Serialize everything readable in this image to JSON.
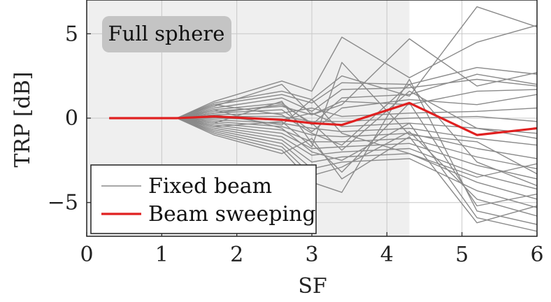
{
  "chart_data": {
    "type": "line",
    "xlabel": "SF",
    "ylabel": "TRP [dB]",
    "xlim": [
      0,
      6
    ],
    "ylim": [
      -7,
      7
    ],
    "x_ticks": [
      0,
      1,
      2,
      3,
      4,
      5,
      6
    ],
    "y_ticks": [
      -5,
      0,
      5
    ],
    "x_tick_labels": [
      "0",
      "1",
      "2",
      "3",
      "4",
      "5",
      "6"
    ],
    "y_tick_labels": [
      "−5",
      "0",
      "5"
    ],
    "grid": true,
    "shaded_region": {
      "x_from": 0,
      "x_to": 4.3
    },
    "annotation": "Full sphere",
    "legend": {
      "position": "bottom-left",
      "entries": [
        "Fixed beam",
        "Beam sweeping"
      ]
    },
    "colors": {
      "fixed": "#8a8a8a",
      "sweep": "#e02020",
      "shade": "#efefef",
      "grid": "#c8c8c8"
    },
    "x": [
      0.3,
      1.2,
      1.7,
      2.6,
      3.0,
      3.4,
      4.3,
      5.2,
      6.0
    ],
    "series": [
      {
        "name": "Beam sweeping",
        "values": [
          0,
          0,
          0.1,
          -0.1,
          -0.3,
          -0.4,
          0.9,
          -1.0,
          -0.6
        ]
      },
      {
        "values": [
          0,
          0,
          0.9,
          1.6,
          1.1,
          2.5,
          1.3,
          6.6,
          5.4
        ]
      },
      {
        "values": [
          0,
          0,
          1.0,
          2.2,
          1.6,
          4.8,
          2.4,
          4.5,
          5.5
        ]
      },
      {
        "values": [
          0,
          0,
          0.7,
          2.0,
          0.2,
          0.8,
          4.7,
          1.9,
          2.7
        ]
      },
      {
        "values": [
          0,
          0,
          0.8,
          1.4,
          0.9,
          2.1,
          2.0,
          3.0,
          2.6
        ]
      },
      {
        "values": [
          0,
          0,
          0.6,
          1.2,
          0.4,
          1.7,
          1.8,
          2.3,
          1.9
        ]
      },
      {
        "values": [
          0,
          0,
          0.5,
          0.9,
          -0.4,
          1.2,
          1.4,
          2.6,
          2.0
        ]
      },
      {
        "values": [
          0,
          0,
          0.4,
          0.7,
          0.2,
          1.0,
          0.8,
          1.6,
          1.7
        ]
      },
      {
        "values": [
          0,
          0,
          0.3,
          0.5,
          -0.8,
          0.6,
          1.1,
          0.8,
          1.4
        ]
      },
      {
        "values": [
          0,
          0,
          0.2,
          0.3,
          0.6,
          0.1,
          0.3,
          0.4,
          0.6
        ]
      },
      {
        "values": [
          0,
          0,
          0.1,
          0.1,
          -0.2,
          -0.2,
          0.0,
          0.1,
          -0.2
        ]
      },
      {
        "values": [
          0,
          0,
          0.0,
          -0.1,
          0.3,
          -0.5,
          -0.3,
          -0.6,
          -0.9
        ]
      },
      {
        "values": [
          0,
          0,
          -0.1,
          -0.3,
          -0.6,
          -0.8,
          -0.6,
          -1.2,
          -1.6
        ]
      },
      {
        "values": [
          0,
          0,
          -0.2,
          -0.5,
          -1.0,
          -1.1,
          -0.9,
          -1.8,
          -2.4
        ]
      },
      {
        "values": [
          0,
          0,
          -0.3,
          -0.7,
          -1.4,
          -1.4,
          -1.2,
          -2.3,
          -3.0
        ]
      },
      {
        "values": [
          0,
          0,
          -0.4,
          -0.9,
          -1.8,
          -1.7,
          -1.5,
          -2.8,
          -3.6
        ]
      },
      {
        "values": [
          0,
          0,
          -0.5,
          -1.1,
          -2.2,
          -2.0,
          -1.8,
          -3.3,
          -4.2
        ]
      },
      {
        "values": [
          0,
          0,
          -0.6,
          -1.3,
          -2.6,
          -2.3,
          -2.1,
          -3.8,
          -4.8
        ]
      },
      {
        "values": [
          0,
          0,
          -0.7,
          -1.5,
          -3.0,
          -2.6,
          -2.4,
          -4.3,
          -5.3
        ]
      },
      {
        "values": [
          0,
          0,
          -0.8,
          -1.7,
          -3.4,
          -2.9,
          -0.8,
          -4.8,
          -5.8
        ]
      },
      {
        "values": [
          0,
          0,
          -0.9,
          -1.9,
          -3.8,
          -4.4,
          2.3,
          -5.5,
          -6.3
        ]
      },
      {
        "values": [
          0,
          0,
          -1.0,
          -2.1,
          -1.2,
          -3.6,
          -1.1,
          -6.2,
          -5.2
        ]
      },
      {
        "values": [
          0,
          0,
          0.5,
          -0.6,
          -2.0,
          -2.5,
          -0.3,
          -5.9,
          -6.7
        ]
      },
      {
        "values": [
          0,
          0,
          -0.3,
          1.0,
          -1.5,
          -3.2,
          0.9,
          -5.2,
          -4.5
        ]
      },
      {
        "values": [
          0,
          0,
          0.8,
          0.2,
          -0.9,
          -1.6,
          2.0,
          -2.6,
          -4.0
        ]
      },
      {
        "values": [
          0,
          0,
          0.2,
          -0.4,
          1.1,
          -0.9,
          -2.1,
          -3.5,
          -2.7
        ]
      },
      {
        "values": [
          0,
          0,
          -0.5,
          -0.2,
          -1.7,
          3.3,
          -1.0,
          -1.4,
          -3.3
        ]
      },
      {
        "values": [
          0,
          0,
          0.3,
          0.8,
          -0.3,
          -1.9,
          1.6,
          -0.6,
          -1.2
        ]
      }
    ]
  }
}
